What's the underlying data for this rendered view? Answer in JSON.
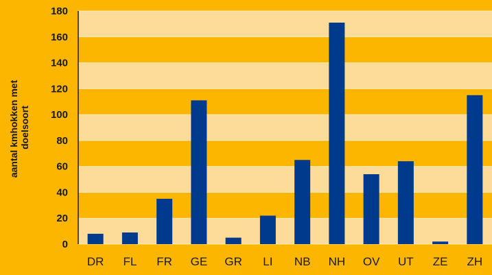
{
  "chart_data": {
    "type": "bar",
    "categories": [
      "DR",
      "FL",
      "FR",
      "GE",
      "GR",
      "LI",
      "NB",
      "NH",
      "OV",
      "UT",
      "ZE",
      "ZH"
    ],
    "values": [
      8,
      9,
      35,
      111,
      5,
      22,
      65,
      171,
      54,
      64,
      2,
      115
    ],
    "ylabel_lines": [
      "aantal kmhokken met",
      "doelsoort"
    ],
    "ylim": [
      0,
      180
    ],
    "yticks": [
      0,
      20,
      40,
      60,
      80,
      100,
      120,
      140,
      160,
      180
    ],
    "grid": "alternating horizontal bands",
    "colors": {
      "background": "#FCB600",
      "band_light": "#FDDC9A",
      "band_dark": "#FCB600",
      "bar": "#003A8C",
      "axis": "#1a1a1a"
    }
  }
}
